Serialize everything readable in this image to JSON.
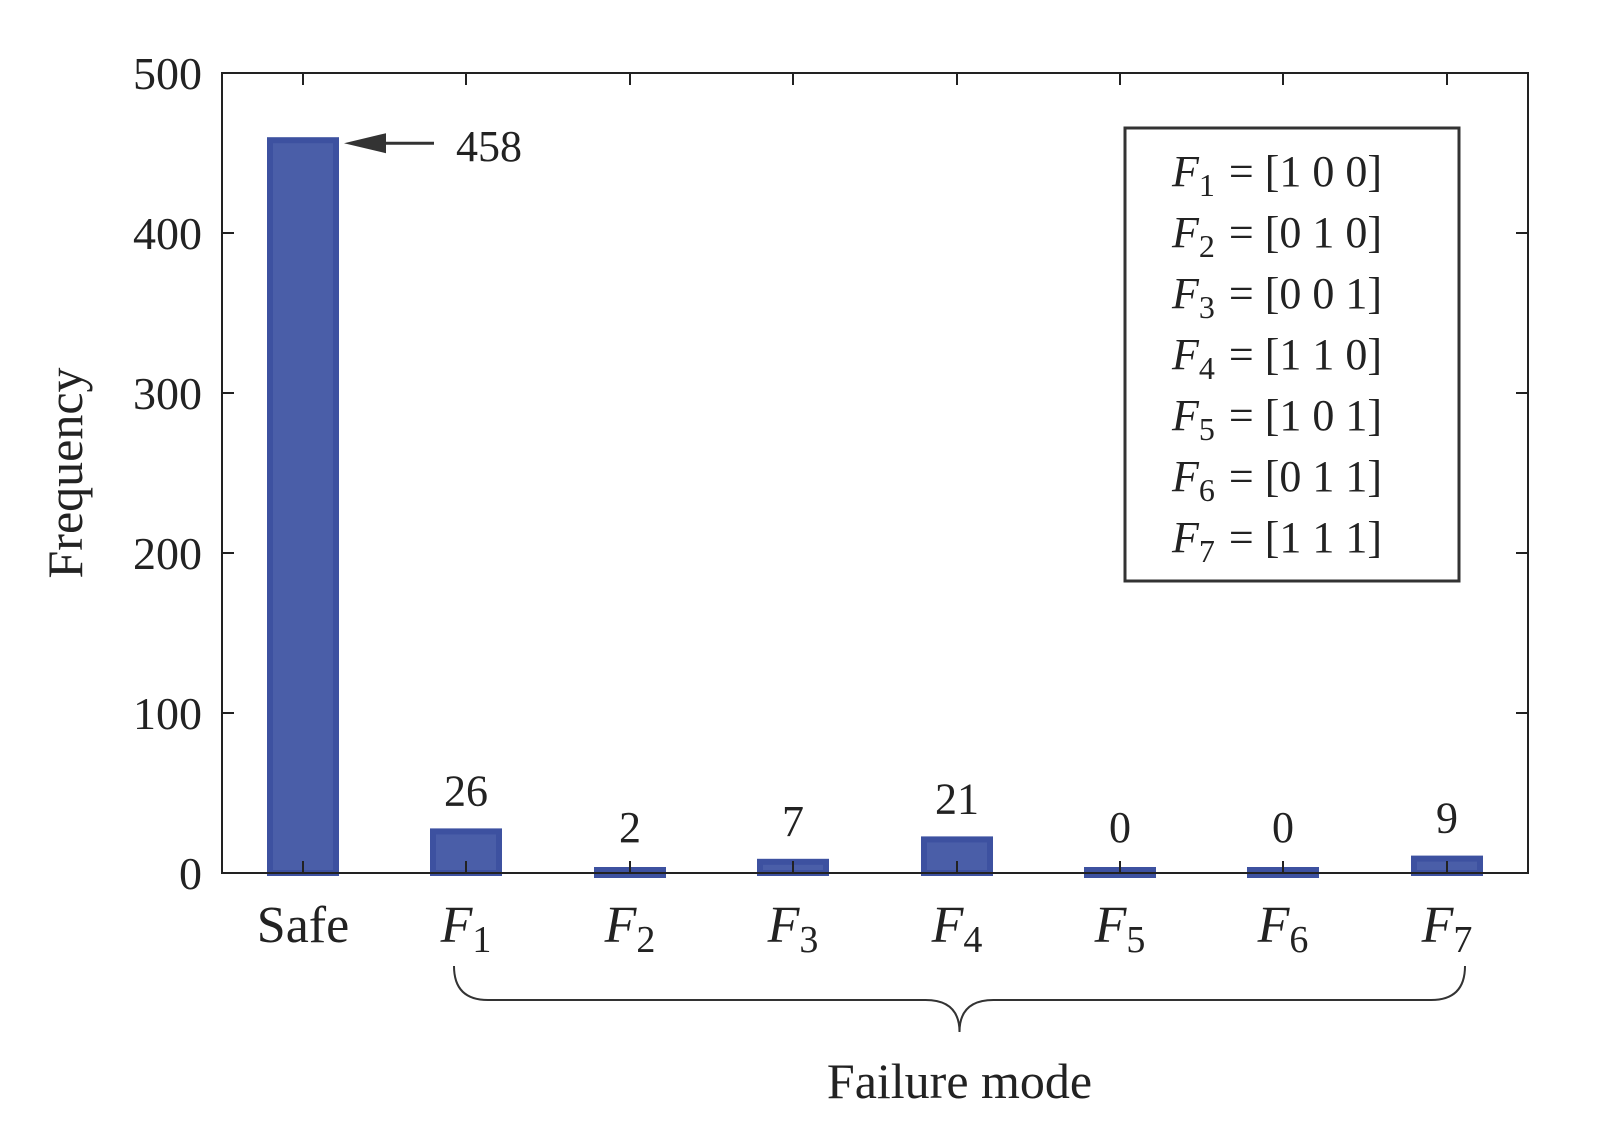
{
  "chart_data": {
    "type": "bar",
    "categories": [
      {
        "base": "Safe",
        "sub": ""
      },
      {
        "base": "F",
        "sub": "1"
      },
      {
        "base": "F",
        "sub": "2"
      },
      {
        "base": "F",
        "sub": "3"
      },
      {
        "base": "F",
        "sub": "4"
      },
      {
        "base": "F",
        "sub": "5"
      },
      {
        "base": "F",
        "sub": "6"
      },
      {
        "base": "F",
        "sub": "7"
      }
    ],
    "values": [
      458,
      26,
      2,
      7,
      21,
      0,
      0,
      9
    ],
    "data_labels": [
      "458",
      "26",
      "2",
      "7",
      "21",
      "0",
      "0",
      "9"
    ],
    "title": "",
    "xlabel": "Failure mode",
    "ylabel": "Frequency",
    "ylim": [
      0,
      500
    ],
    "yticks": [
      "0",
      "100",
      "200",
      "300",
      "400",
      "500"
    ],
    "grid": false,
    "bar_color": "#4a5ea8",
    "bar_edge_color": "#3d51a0",
    "annotation": {
      "text": "458",
      "target": "Safe",
      "style": "arrow"
    },
    "group_brace": {
      "from": "F1",
      "to": "F7",
      "label": "Failure mode"
    },
    "legend": {
      "placement": "top-right",
      "entries": [
        {
          "base": "F",
          "sub": "1",
          "vector": "= [1 0 0]"
        },
        {
          "base": "F",
          "sub": "2",
          "vector": "= [0 1 0]"
        },
        {
          "base": "F",
          "sub": "3",
          "vector": "= [0 0 1]"
        },
        {
          "base": "F",
          "sub": "4",
          "vector": "= [1 1 0]"
        },
        {
          "base": "F",
          "sub": "5",
          "vector": "= [1 0 1]"
        },
        {
          "base": "F",
          "sub": "6",
          "vector": "= [0 1 1]"
        },
        {
          "base": "F",
          "sub": "7",
          "vector": "= [1 1 1]"
        }
      ]
    }
  }
}
